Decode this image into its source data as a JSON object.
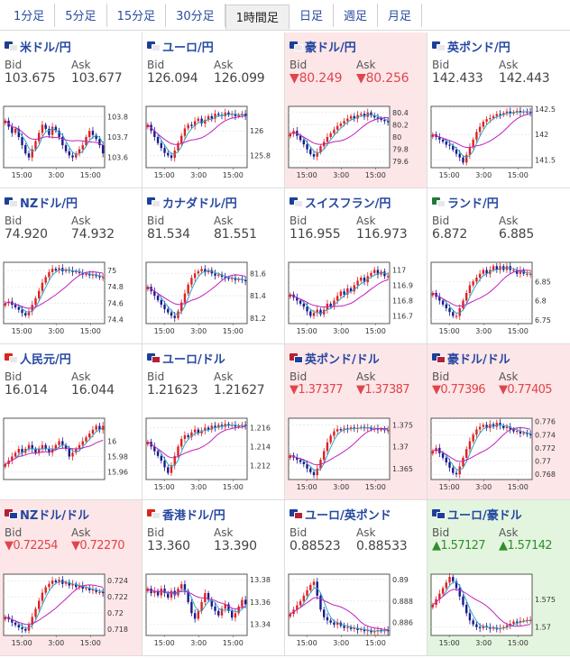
{
  "tabs": [
    {
      "label": "1分足",
      "active": false
    },
    {
      "label": "5分足",
      "active": false
    },
    {
      "label": "15分足",
      "active": false
    },
    {
      "label": "30分足",
      "active": false
    },
    {
      "label": "1時間足",
      "active": true
    },
    {
      "label": "日足",
      "active": false
    },
    {
      "label": "週足",
      "active": false
    },
    {
      "label": "月足",
      "active": false
    }
  ],
  "labels": {
    "bid": "Bid",
    "ask": "Ask"
  },
  "colors": {
    "up_candle": "#e02020",
    "down_candle": "#1a1a8c",
    "ma_short": "#2aa7c8",
    "ma_long": "#c020c0",
    "pink_bg": "#fde6e8",
    "green_bg": "#e4f5df",
    "down_text": "#e0454b",
    "up_text": "#2f8f2f"
  },
  "pairs": [
    {
      "name": "米ドル/円",
      "flag": [
        "#1f3d8f",
        "#e8e8e8"
      ],
      "bid": "103.675",
      "ask": "103.677",
      "status": "none",
      "chart_data": {
        "type": "candlestick",
        "x_ticks": [
          "15:00",
          "3:00",
          "15:00"
        ],
        "y_ticks": [
          "103.8",
          "103.7",
          "103.6"
        ],
        "ylim": [
          103.55,
          103.85
        ],
        "close": [
          103.78,
          103.75,
          103.72,
          103.74,
          103.7,
          103.66,
          103.62,
          103.6,
          103.64,
          103.68,
          103.72,
          103.76,
          103.74,
          103.71,
          103.75,
          103.73,
          103.7,
          103.66,
          103.63,
          103.61,
          103.6,
          103.62,
          103.64,
          103.66,
          103.7,
          103.73,
          103.71,
          103.69,
          103.66,
          103.62
        ]
      }
    },
    {
      "name": "ユーロ/円",
      "flag": [
        "#1c3f9a",
        "#e8e8e8"
      ],
      "bid": "126.094",
      "ask": "126.099",
      "status": "none",
      "chart_data": {
        "type": "candlestick",
        "x_ticks": [
          "15:00",
          "3:00",
          "15:00"
        ],
        "y_ticks": [
          "126",
          "125.8"
        ],
        "ylim": [
          125.7,
          126.2
        ],
        "close": [
          126.05,
          126.0,
          125.95,
          125.9,
          125.86,
          125.82,
          125.8,
          125.78,
          125.84,
          125.9,
          125.96,
          126.02,
          126.05,
          126.04,
          126.08,
          126.1,
          126.06,
          126.09,
          126.12,
          126.1,
          126.14,
          126.13,
          126.12,
          126.15,
          126.13,
          126.14,
          126.12,
          126.13,
          126.14,
          126.12
        ]
      }
    },
    {
      "name": "豪ドル/円",
      "flag": [
        "#1c3f9a",
        "#e8e8e8"
      ],
      "bid": "▼80.249",
      "ask": "▼80.256",
      "status": "down",
      "chart_data": {
        "type": "candlestick",
        "x_ticks": [
          "15:00",
          "3:00",
          "15:00"
        ],
        "y_ticks": [
          "80.4",
          "80.2",
          "80",
          "79.8",
          "79.6"
        ],
        "ylim": [
          79.5,
          80.5
        ],
        "close": [
          80.05,
          80.1,
          80.02,
          79.95,
          79.88,
          79.8,
          79.72,
          79.68,
          79.75,
          79.85,
          79.92,
          80.0,
          80.06,
          80.12,
          80.18,
          80.22,
          80.26,
          80.3,
          80.34,
          80.3,
          80.36,
          80.38,
          80.33,
          80.4,
          80.35,
          80.32,
          80.3,
          80.28,
          80.26,
          80.25
        ]
      }
    },
    {
      "name": "英ポンド/円",
      "flag": [
        "#1c3f9a",
        "#e8e8e8"
      ],
      "bid": "142.433",
      "ask": "142.443",
      "status": "none",
      "chart_data": {
        "type": "candlestick",
        "x_ticks": [
          "15:00",
          "3:00",
          "15:00"
        ],
        "y_ticks": [
          "142.5",
          "142",
          "141.5"
        ],
        "ylim": [
          141.35,
          142.55
        ],
        "close": [
          142.0,
          141.95,
          141.9,
          141.86,
          141.8,
          141.78,
          141.7,
          141.62,
          141.55,
          141.45,
          141.6,
          141.75,
          141.9,
          142.05,
          142.15,
          142.25,
          142.3,
          142.32,
          142.36,
          142.4,
          142.38,
          142.42,
          142.45,
          142.41,
          142.44,
          142.46,
          142.43,
          142.45,
          142.44,
          142.43
        ]
      }
    },
    {
      "name": "NZドル/円",
      "flag": [
        "#1c3f9a",
        "#e8e8e8"
      ],
      "bid": "74.920",
      "ask": "74.932",
      "status": "none",
      "chart_data": {
        "type": "candlestick",
        "x_ticks": [
          "15:00",
          "3:00",
          "15:00"
        ],
        "y_ticks": [
          "75",
          "74.8",
          "74.6",
          "74.4"
        ],
        "ylim": [
          74.35,
          75.1
        ],
        "close": [
          74.6,
          74.62,
          74.58,
          74.55,
          74.52,
          74.48,
          74.45,
          74.5,
          74.58,
          74.66,
          74.75,
          74.85,
          74.92,
          74.98,
          75.02,
          75.0,
          75.03,
          74.99,
          75.01,
          75.0,
          74.98,
          74.99,
          74.97,
          74.95,
          74.96,
          74.94,
          74.95,
          74.93,
          74.92,
          74.92
        ]
      }
    },
    {
      "name": "カナダドル/円",
      "flag": [
        "#1c3f9a",
        "#e8e8e8"
      ],
      "bid": "81.534",
      "ask": "81.551",
      "status": "none",
      "chart_data": {
        "type": "candlestick",
        "x_ticks": [
          "15:00",
          "3:00",
          "15:00"
        ],
        "y_ticks": [
          "81.6",
          "81.4",
          "81.2"
        ],
        "ylim": [
          81.15,
          81.7
        ],
        "close": [
          81.48,
          81.44,
          81.4,
          81.36,
          81.32,
          81.28,
          81.25,
          81.22,
          81.2,
          81.26,
          81.34,
          81.42,
          81.5,
          81.56,
          81.6,
          81.62,
          81.64,
          81.61,
          81.63,
          81.6,
          81.58,
          81.59,
          81.57,
          81.56,
          81.55,
          81.56,
          81.54,
          81.55,
          81.54,
          81.53
        ]
      }
    },
    {
      "name": "スイスフラン/円",
      "flag": [
        "#1c3f9a",
        "#e8e8e8"
      ],
      "bid": "116.955",
      "ask": "116.973",
      "status": "none",
      "chart_data": {
        "type": "candlestick",
        "x_ticks": [
          "15:00",
          "3:00",
          "15:00"
        ],
        "y_ticks": [
          "117",
          "116.9",
          "116.8",
          "116.7"
        ],
        "ylim": [
          116.65,
          117.05
        ],
        "close": [
          116.84,
          116.82,
          116.8,
          116.78,
          116.76,
          116.73,
          116.7,
          116.72,
          116.74,
          116.71,
          116.74,
          116.78,
          116.76,
          116.8,
          116.83,
          116.86,
          116.84,
          116.88,
          116.86,
          116.9,
          116.93,
          116.95,
          116.92,
          116.96,
          116.98,
          117.0,
          116.97,
          116.99,
          116.96,
          116.96
        ]
      }
    },
    {
      "name": "ランド/円",
      "flag": [
        "#1f7a3a",
        "#e8e8e8"
      ],
      "bid": "6.872",
      "ask": "6.885",
      "status": "none",
      "chart_data": {
        "type": "candlestick",
        "x_ticks": [
          "15:00",
          "3:00",
          "15:00"
        ],
        "y_ticks": [
          "6.85",
          "6.8",
          "6.75"
        ],
        "ylim": [
          6.74,
          6.9
        ],
        "close": [
          6.82,
          6.81,
          6.8,
          6.79,
          6.78,
          6.77,
          6.76,
          6.76,
          6.78,
          6.8,
          6.82,
          6.84,
          6.85,
          6.86,
          6.87,
          6.88,
          6.87,
          6.88,
          6.89,
          6.88,
          6.89,
          6.88,
          6.89,
          6.88,
          6.88,
          6.87,
          6.88,
          6.87,
          6.87,
          6.87
        ]
      }
    },
    {
      "name": "人民元/円",
      "flag": [
        "#d9261c",
        "#e8e8e8"
      ],
      "bid": "16.014",
      "ask": "16.044",
      "status": "none",
      "chart_data": {
        "type": "candlestick",
        "x_ticks": [],
        "y_ticks": [
          "16",
          "15.98",
          "15.96"
        ],
        "ylim": [
          15.95,
          16.03
        ],
        "close": [
          15.97,
          15.975,
          15.98,
          15.985,
          15.99,
          15.985,
          15.99,
          15.995,
          15.99,
          15.985,
          15.99,
          15.995,
          15.99,
          15.985,
          15.99,
          15.995,
          16.0,
          15.995,
          15.99,
          15.98,
          15.985,
          15.99,
          15.995,
          16.0,
          16.005,
          16.01,
          16.015,
          16.02,
          16.015,
          16.02
        ]
      }
    },
    {
      "name": "ユーロ/ドル",
      "flag": [
        "#1c3f9a",
        "#b22234"
      ],
      "bid": "1.21623",
      "ask": "1.21627",
      "status": "none",
      "chart_data": {
        "type": "candlestick",
        "x_ticks": [
          "15:00",
          "3:00",
          "15:00"
        ],
        "y_ticks": [
          "1.216",
          "1.214",
          "1.212"
        ],
        "ylim": [
          1.2105,
          1.217
        ],
        "close": [
          1.2145,
          1.214,
          1.2135,
          1.213,
          1.2125,
          1.2118,
          1.2112,
          1.212,
          1.213,
          1.214,
          1.2148,
          1.2152,
          1.215,
          1.2155,
          1.2158,
          1.2154,
          1.2157,
          1.216,
          1.2158,
          1.2162,
          1.216,
          1.2163,
          1.2161,
          1.2164,
          1.2162,
          1.2163,
          1.2161,
          1.2162,
          1.2163,
          1.2162
        ]
      }
    },
    {
      "name": "英ポンド/ドル",
      "flag": [
        "#b22234",
        "#1c3f9a"
      ],
      "bid": "▼1.37377",
      "ask": "▼1.37387",
      "status": "down",
      "chart_data": {
        "type": "candlestick",
        "x_ticks": [
          "15:00",
          "3:00",
          "15:00"
        ],
        "y_ticks": [
          "1.375",
          "1.37",
          "1.365"
        ],
        "ylim": [
          1.3625,
          1.3765
        ],
        "close": [
          1.368,
          1.3675,
          1.367,
          1.3665,
          1.366,
          1.365,
          1.3642,
          1.3635,
          1.365,
          1.367,
          1.369,
          1.371,
          1.3725,
          1.3735,
          1.374,
          1.3738,
          1.3742,
          1.374,
          1.3744,
          1.3741,
          1.3743,
          1.3745,
          1.3742,
          1.3744,
          1.374,
          1.3742,
          1.3739,
          1.374,
          1.3738,
          1.3738
        ]
      }
    },
    {
      "name": "豪ドル/ドル",
      "flag": [
        "#1c3f9a",
        "#b22234"
      ],
      "bid": "▼0.77396",
      "ask": "▼0.77405",
      "status": "down",
      "chart_data": {
        "type": "candlestick",
        "x_ticks": [
          "15:00",
          "3:00",
          "15:00"
        ],
        "y_ticks": [
          "0.776",
          "0.774",
          "0.772",
          "0.77",
          "0.768"
        ],
        "ylim": [
          0.7672,
          0.7765
        ],
        "close": [
          0.7715,
          0.772,
          0.7712,
          0.7705,
          0.7698,
          0.769,
          0.7682,
          0.768,
          0.7692,
          0.7705,
          0.7718,
          0.773,
          0.774,
          0.7748,
          0.7752,
          0.7755,
          0.775,
          0.7756,
          0.7752,
          0.7758,
          0.7754,
          0.775,
          0.7752,
          0.7748,
          0.7745,
          0.7746,
          0.7742,
          0.7743,
          0.7741,
          0.774
        ]
      }
    },
    {
      "name": "NZドル/ドル",
      "flag": [
        "#b22234",
        "#1c3f9a"
      ],
      "bid": "▼0.72254",
      "ask": "▼0.72270",
      "status": "down",
      "chart_data": {
        "type": "candlestick",
        "x_ticks": [
          "15:00",
          "3:00",
          "15:00"
        ],
        "y_ticks": [
          "0.724",
          "0.722",
          "0.72",
          "0.718"
        ],
        "ylim": [
          0.7172,
          0.7248
        ],
        "close": [
          0.7195,
          0.7192,
          0.7188,
          0.7185,
          0.7182,
          0.718,
          0.7178,
          0.7185,
          0.7195,
          0.7205,
          0.7215,
          0.7225,
          0.7232,
          0.7236,
          0.724,
          0.7238,
          0.7241,
          0.7236,
          0.7238,
          0.7234,
          0.7236,
          0.7232,
          0.7234,
          0.723,
          0.7231,
          0.7228,
          0.7229,
          0.7226,
          0.7226,
          0.7225
        ]
      }
    },
    {
      "name": "香港ドル/円",
      "flag": [
        "#d9261c",
        "#e8e8e8"
      ],
      "bid": "13.360",
      "ask": "13.390",
      "status": "none",
      "chart_data": {
        "type": "candlestick",
        "x_ticks": [
          "15:00",
          "3:00",
          "15:00"
        ],
        "y_ticks": [
          "13.38",
          "13.36",
          "13.34"
        ],
        "ylim": [
          13.33,
          13.385
        ],
        "close": [
          13.372,
          13.368,
          13.37,
          13.366,
          13.372,
          13.368,
          13.364,
          13.37,
          13.366,
          13.372,
          13.376,
          13.37,
          13.36,
          13.35,
          13.345,
          13.352,
          13.36,
          13.368,
          13.362,
          13.356,
          13.352,
          13.348,
          13.354,
          13.358,
          13.352,
          13.346,
          13.35,
          13.356,
          13.362,
          13.358
        ]
      }
    },
    {
      "name": "ユーロ/英ポンド",
      "flag": [
        "#1c3f9a",
        "#b22234"
      ],
      "bid": "0.88523",
      "ask": "0.88533",
      "status": "none",
      "chart_data": {
        "type": "candlestick",
        "x_ticks": [
          "15:00",
          "3:00",
          "15:00"
        ],
        "y_ticks": [
          "0.89",
          "0.888",
          "0.886"
        ],
        "ylim": [
          0.8848,
          0.8905
        ],
        "close": [
          0.8868,
          0.8872,
          0.8876,
          0.888,
          0.8885,
          0.889,
          0.8895,
          0.8898,
          0.8885,
          0.8872,
          0.8865,
          0.8862,
          0.886,
          0.8858,
          0.886,
          0.8857,
          0.8855,
          0.8856,
          0.8854,
          0.8855,
          0.8853,
          0.8854,
          0.8852,
          0.8853,
          0.8851,
          0.8852,
          0.8853,
          0.8852,
          0.8853,
          0.8852
        ]
      }
    },
    {
      "name": "ユーロ/豪ドル",
      "flag": [
        "#1c3f9a",
        "#1c3f9a"
      ],
      "bid": "▲1.57127",
      "ask": "▲1.57142",
      "status": "up",
      "chart_data": {
        "type": "candlestick",
        "x_ticks": [
          "15:00",
          "3:00",
          "15:00"
        ],
        "y_ticks": [
          "1.575",
          "1.57"
        ],
        "ylim": [
          1.5685,
          1.5795
        ],
        "close": [
          1.574,
          1.575,
          1.576,
          1.577,
          1.578,
          1.579,
          1.5782,
          1.577,
          1.5755,
          1.574,
          1.5725,
          1.5712,
          1.5705,
          1.57,
          1.5698,
          1.5702,
          1.57,
          1.5697,
          1.5699,
          1.5696,
          1.5698,
          1.57,
          1.5703,
          1.5706,
          1.571,
          1.5708,
          1.5711,
          1.5712,
          1.5713,
          1.5713
        ]
      }
    }
  ]
}
